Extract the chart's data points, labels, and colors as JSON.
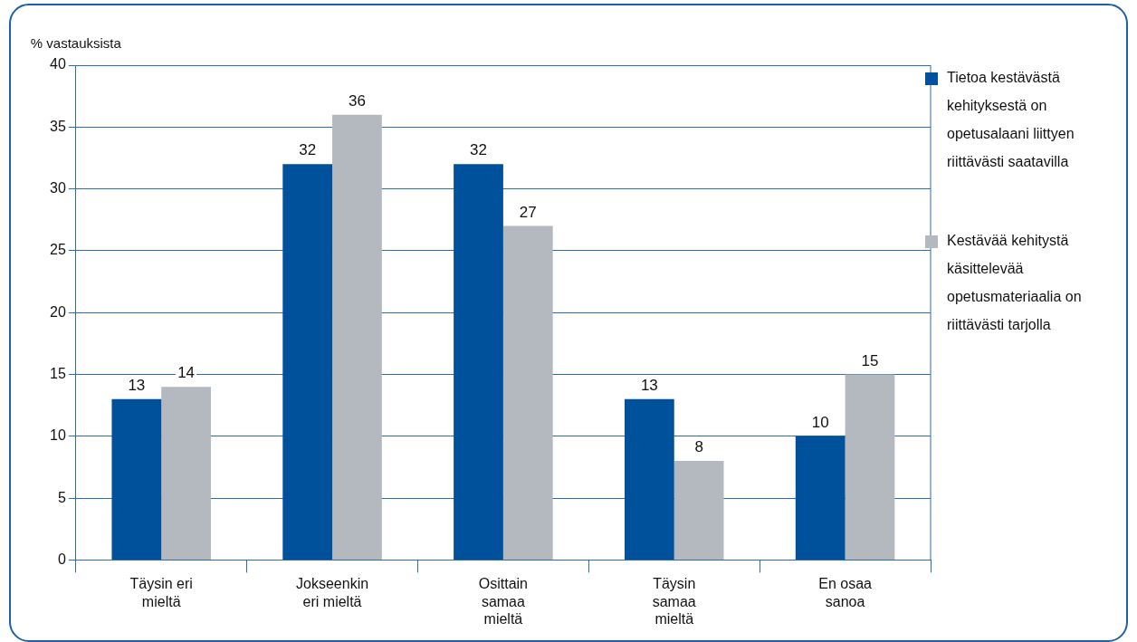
{
  "chart_data": {
    "type": "bar",
    "ylabel": "% vastauksista",
    "categories": [
      "Täysin eri mieltä",
      "Jokseenkin eri mieltä",
      "Osittain samaa mieltä",
      "Täysin samaa mieltä",
      "En osaa sanoa"
    ],
    "series": [
      {
        "name": "Tietoa kestävästä kehityksestä on opetusalaani liittyen riittävästi saatavilla",
        "color": "#00519c",
        "values": [
          13,
          32,
          32,
          13,
          10
        ]
      },
      {
        "name": "Kestävää kehitystä käsittelevää opetusmateriaalia on riittävästi tarjolla",
        "color": "#b4b8bf",
        "values": [
          14,
          36,
          27,
          8,
          15
        ]
      }
    ],
    "ylim": [
      0,
      40
    ],
    "yticks": [
      0,
      5,
      10,
      15,
      20,
      25,
      30,
      35,
      40
    ],
    "grid": "y",
    "legend": "right",
    "data_labels": true
  }
}
